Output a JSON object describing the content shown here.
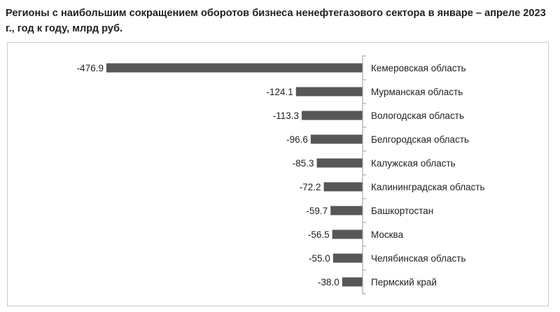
{
  "chart_data": {
    "type": "bar",
    "orientation": "horizontal",
    "title": "Регионы с наибольшим сокращением оборотов бизнеса ненефтегазового сектора в январе – апреле 2023 г., год к году, млрд руб.",
    "categories": [
      "Кемеровская область",
      "Мурманская область",
      "Вологодская область",
      "Белгородская область",
      "Калужская область",
      "Калининградская область",
      "Башкортостан",
      "Москва",
      "Челябинская область",
      "Пермский край"
    ],
    "values": [
      -476.9,
      -124.1,
      -113.3,
      -96.6,
      -85.3,
      -72.2,
      -59.7,
      -56.5,
      -55.0,
      -38.0
    ],
    "value_labels": [
      "-476.9",
      "-124.1",
      "-113.3",
      "-96.6",
      "-85.3",
      "-72.2",
      "-59.7",
      "-56.5",
      "-55.0",
      "-38.0"
    ],
    "xlim": [
      -500,
      0
    ],
    "grid": false,
    "legend": "none",
    "bar_color": "#575757"
  }
}
